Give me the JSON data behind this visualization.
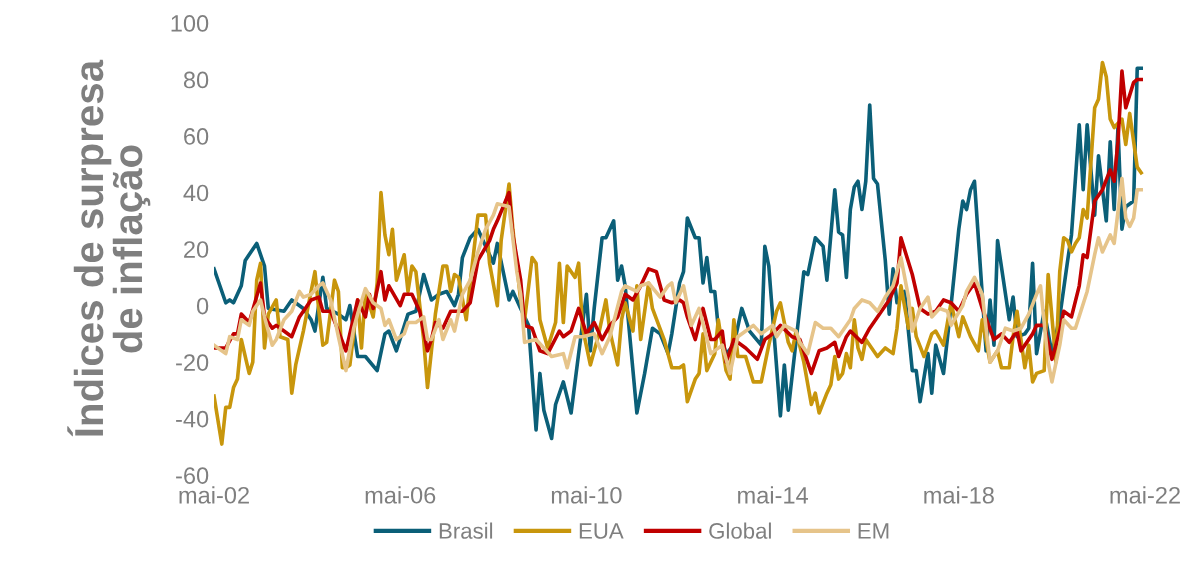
{
  "chart_data": {
    "type": "line",
    "ylabel": "Índices de surpresa\nde inflação",
    "ylim": [
      -60,
      100
    ],
    "yticks": [
      -60,
      -40,
      -20,
      0,
      20,
      40,
      60,
      80,
      100
    ],
    "xlim": [
      "2002-05",
      "2022-05"
    ],
    "xticks": [
      {
        "value": "2002-05",
        "label": "mai-02"
      },
      {
        "value": "2006-05",
        "label": "mai-06"
      },
      {
        "value": "2010-05",
        "label": "mai-10"
      },
      {
        "value": "2014-05",
        "label": "mai-14"
      },
      {
        "value": "2018-05",
        "label": "mai-18"
      },
      {
        "value": "2022-05",
        "label": "mai-22"
      }
    ],
    "grid": false,
    "legend": "bottom",
    "marker": "none",
    "line_style": "solid",
    "series": [
      {
        "name": "Brasil",
        "color": "#0b5f78",
        "x": [
          "2002-05",
          "2002-08",
          "2002-09",
          "2002-10",
          "2002-12",
          "2003-01",
          "2003-04",
          "2003-06",
          "2003-07",
          "2003-11",
          "2004-01",
          "2004-04",
          "2004-06",
          "2004-07",
          "2004-09",
          "2004-10",
          "2005-01",
          "2005-03",
          "2005-04",
          "2005-06",
          "2005-08",
          "2005-11",
          "2006-01",
          "2006-02",
          "2006-04",
          "2006-07",
          "2006-09",
          "2006-11",
          "2007-01",
          "2007-03",
          "2007-05",
          "2007-07",
          "2007-08",
          "2007-09",
          "2007-11",
          "2008-01",
          "2008-03",
          "2008-05",
          "2008-06",
          "2008-09",
          "2008-10",
          "2008-12",
          "2009-02",
          "2009-04",
          "2009-05",
          "2009-06",
          "2009-08",
          "2009-09",
          "2009-11",
          "2010-01",
          "2010-03",
          "2010-05",
          "2010-06",
          "2010-07",
          "2010-09",
          "2010-10",
          "2010-12",
          "2011-01",
          "2011-02",
          "2011-03",
          "2011-06",
          "2011-08",
          "2011-10",
          "2011-12",
          "2012-02",
          "2012-03",
          "2012-05",
          "2012-06",
          "2012-07",
          "2012-09",
          "2012-10",
          "2012-11",
          "2012-12",
          "2013-01",
          "2013-02",
          "2013-03",
          "2013-05",
          "2013-07",
          "2013-09",
          "2013-11",
          "2014-02",
          "2014-03",
          "2014-04",
          "2014-07",
          "2014-08",
          "2014-09",
          "2015-01",
          "2015-02",
          "2015-04",
          "2015-06",
          "2015-07",
          "2015-09",
          "2015-10",
          "2015-11",
          "2015-12",
          "2016-01",
          "2016-02",
          "2016-03",
          "2016-04",
          "2016-05",
          "2016-06",
          "2016-07",
          "2016-08",
          "2016-10",
          "2016-11",
          "2016-12",
          "2017-01",
          "2017-03",
          "2017-05",
          "2017-06",
          "2017-07",
          "2017-09",
          "2017-10",
          "2017-11",
          "2018-01",
          "2018-03",
          "2018-05",
          "2018-06",
          "2018-07",
          "2018-08",
          "2018-09",
          "2018-12",
          "2019-01",
          "2019-02",
          "2019-03",
          "2019-06",
          "2019-07",
          "2019-08",
          "2019-10",
          "2019-11",
          "2019-12",
          "2020-01",
          "2020-03",
          "2020-05",
          "2020-07",
          "2020-09",
          "2020-10",
          "2020-12",
          "2021-01",
          "2021-02",
          "2021-04",
          "2021-05",
          "2021-07",
          "2021-08",
          "2021-09",
          "2021-10",
          "2021-11",
          "2021-12",
          "2022-02",
          "2022-03",
          "2022-04"
        ],
        "values": [
          13,
          1,
          2,
          1,
          7,
          16,
          22,
          14,
          -1,
          -2,
          2,
          -1,
          -5,
          -9,
          10,
          -1,
          -3,
          -5,
          0,
          -18,
          -18,
          -23,
          -10,
          -9,
          -16,
          -3,
          -2,
          11,
          2,
          4,
          5,
          0,
          4,
          17,
          24,
          27,
          21,
          15,
          22,
          2,
          5,
          -1,
          -7,
          -44,
          -24,
          -37,
          -47,
          -35,
          -27,
          -38,
          -17,
          4,
          -16,
          -1,
          24,
          24,
          30,
          9,
          14,
          7,
          -38,
          -24,
          -8,
          -10,
          -17,
          -10,
          8,
          12,
          31,
          24,
          24,
          8,
          17,
          5,
          5,
          -8,
          -17,
          -14,
          -1,
          -9,
          -14,
          21,
          14,
          -39,
          -21,
          -37,
          12,
          11,
          24,
          21,
          9,
          41,
          26,
          25,
          10,
          34,
          42,
          44,
          34,
          44,
          71,
          45,
          43,
          16,
          -3,
          13,
          1,
          5,
          -23,
          -23,
          -34,
          -17,
          -31,
          -14,
          -24,
          0,
          27,
          37,
          34,
          41,
          44,
          -16,
          2,
          -14,
          23,
          -5,
          3,
          -11,
          -10,
          -8,
          15,
          -17,
          -2,
          -17,
          -4,
          16,
          25,
          64,
          41,
          64,
          32,
          53,
          30,
          58,
          34,
          63,
          27,
          35,
          37,
          84,
          84
        ]
      },
      {
        "name": "EUA",
        "color": "#c8960c",
        "x": [
          "2002-05",
          "2002-07",
          "2002-08",
          "2002-09",
          "2002-10",
          "2002-11",
          "2002-12",
          "2003-02",
          "2003-03",
          "2003-04",
          "2003-05",
          "2003-06",
          "2003-07",
          "2003-09",
          "2003-10",
          "2003-12",
          "2004-01",
          "2004-02",
          "2004-04",
          "2004-05",
          "2004-07",
          "2004-08",
          "2004-09",
          "2004-10",
          "2004-12",
          "2005-01",
          "2005-02",
          "2005-03",
          "2005-04",
          "2005-06",
          "2005-07",
          "2005-08",
          "2005-10",
          "2005-11",
          "2005-12",
          "2006-01",
          "2006-02",
          "2006-03",
          "2006-04",
          "2006-06",
          "2006-07",
          "2006-08",
          "2006-09",
          "2006-11",
          "2006-12",
          "2007-01",
          "2007-02",
          "2007-04",
          "2007-05",
          "2007-06",
          "2007-07",
          "2007-08",
          "2007-10",
          "2007-11",
          "2008-01",
          "2008-03",
          "2008-04",
          "2008-06",
          "2008-07",
          "2008-09",
          "2008-10",
          "2008-12",
          "2009-01",
          "2009-03",
          "2009-04",
          "2009-05",
          "2009-07",
          "2009-09",
          "2009-10",
          "2009-11",
          "2009-12",
          "2010-02",
          "2010-03",
          "2010-04",
          "2010-06",
          "2010-08",
          "2010-10",
          "2010-11",
          "2011-01",
          "2011-02",
          "2011-03",
          "2011-05",
          "2011-06",
          "2011-07",
          "2011-09",
          "2011-10",
          "2012-01",
          "2012-03",
          "2012-05",
          "2012-06",
          "2012-07",
          "2012-09",
          "2012-10",
          "2012-11",
          "2012-12",
          "2013-02",
          "2013-03",
          "2013-05",
          "2013-06",
          "2013-07",
          "2013-08",
          "2013-10",
          "2013-12",
          "2014-02",
          "2014-04",
          "2014-06",
          "2014-07",
          "2014-09",
          "2014-10",
          "2014-11",
          "2015-01",
          "2015-03",
          "2015-04",
          "2015-05",
          "2015-07",
          "2015-08",
          "2015-09",
          "2015-10",
          "2015-11",
          "2015-12",
          "2016-01",
          "2016-02",
          "2016-03",
          "2016-04",
          "2016-05",
          "2016-08",
          "2016-10",
          "2016-12",
          "2017-01",
          "2017-02",
          "2017-04",
          "2017-05",
          "2017-06",
          "2017-08",
          "2017-10",
          "2017-11",
          "2018-01",
          "2018-02",
          "2018-03",
          "2018-05",
          "2018-06",
          "2018-08",
          "2018-10",
          "2018-11",
          "2019-01",
          "2019-03",
          "2019-04",
          "2019-06",
          "2019-07",
          "2019-08",
          "2019-10",
          "2019-11",
          "2019-12",
          "2020-01",
          "2020-03",
          "2020-04",
          "2020-06",
          "2020-07",
          "2020-08",
          "2020-09",
          "2020-10",
          "2020-11",
          "2020-12",
          "2021-01",
          "2021-02",
          "2021-04",
          "2021-05",
          "2021-06",
          "2021-07",
          "2021-08",
          "2021-09",
          "2021-11",
          "2021-12",
          "2022-01",
          "2022-03",
          "2022-04"
        ],
        "values": [
          -32,
          -49,
          -36,
          -36,
          -29,
          -26,
          -12,
          -24,
          -20,
          9,
          15,
          -15,
          -3,
          2,
          -11,
          -12,
          -31,
          -21,
          -9,
          -2,
          12,
          -2,
          -14,
          -13,
          9,
          5,
          -22,
          -22,
          -21,
          2,
          -15,
          5,
          -4,
          8,
          40,
          25,
          18,
          27,
          9,
          18,
          5,
          14,
          12,
          -12,
          -29,
          -16,
          -3,
          14,
          14,
          5,
          11,
          10,
          -5,
          8,
          32,
          32,
          15,
          0,
          23,
          43,
          27,
          2,
          -5,
          17,
          15,
          -5,
          -15,
          -6,
          15,
          -6,
          14,
          10,
          15,
          -8,
          -21,
          -11,
          2,
          -9,
          -21,
          -5,
          1,
          -9,
          7,
          -12,
          8,
          -1,
          -12,
          -22,
          -22,
          -21,
          -34,
          -26,
          -24,
          -10,
          -23,
          -17,
          -5,
          -23,
          -26,
          -5,
          -18,
          -18,
          -27,
          -27,
          -14,
          -2,
          1,
          -13,
          -16,
          -9,
          -20,
          -35,
          -31,
          -38,
          -31,
          -28,
          -18,
          -26,
          -24,
          -17,
          -22,
          -5,
          -15,
          -19,
          -12,
          -18,
          -15,
          -17,
          -8,
          7,
          -8,
          -1,
          -11,
          -18,
          -10,
          -9,
          -14,
          -6,
          1,
          -11,
          -4,
          -11,
          -16,
          -5,
          -20,
          -16,
          -22,
          -22,
          -11,
          -2,
          -22,
          -14,
          -27,
          -24,
          -23,
          11,
          -20,
          12,
          24,
          23,
          19,
          22,
          24,
          34,
          31,
          70,
          73,
          86,
          81,
          66,
          63,
          66,
          57,
          68,
          49,
          47
        ]
      },
      {
        "name": "Global",
        "color": "#c00000",
        "x": [
          "2002-05",
          "2002-08",
          "2002-10",
          "2002-11",
          "2002-12",
          "2003-02",
          "2003-05",
          "2003-06",
          "2003-08",
          "2003-09",
          "2003-11",
          "2004-01",
          "2004-03",
          "2004-06",
          "2004-08",
          "2004-09",
          "2004-11",
          "2005-01",
          "2005-03",
          "2005-06",
          "2005-08",
          "2005-09",
          "2005-10",
          "2005-12",
          "2006-01",
          "2006-02",
          "2006-05",
          "2006-06",
          "2006-08",
          "2006-10",
          "2006-12",
          "2007-01",
          "2007-02",
          "2007-04",
          "2007-06",
          "2007-08",
          "2007-09",
          "2007-11",
          "2008-01",
          "2008-04",
          "2008-05",
          "2008-06",
          "2008-09",
          "2008-10",
          "2008-12",
          "2009-01",
          "2009-03",
          "2009-05",
          "2009-07",
          "2009-10",
          "2009-11",
          "2010-01",
          "2010-03",
          "2010-05",
          "2010-07",
          "2010-09",
          "2010-11",
          "2011-01",
          "2011-03",
          "2011-05",
          "2011-07",
          "2011-09",
          "2011-11",
          "2012-01",
          "2012-03",
          "2012-05",
          "2012-06",
          "2012-07",
          "2012-09",
          "2012-11",
          "2013-01",
          "2013-02",
          "2013-04",
          "2013-05",
          "2013-07",
          "2013-10",
          "2014-01",
          "2014-03",
          "2014-05",
          "2014-07",
          "2014-10",
          "2014-12",
          "2015-03",
          "2015-05",
          "2015-07",
          "2015-09",
          "2015-10",
          "2015-12",
          "2016-01",
          "2016-04",
          "2016-06",
          "2016-08",
          "2016-11",
          "2017-01",
          "2017-02",
          "2017-05",
          "2017-07",
          "2017-09",
          "2017-11",
          "2018-01",
          "2018-03",
          "2018-05",
          "2018-07",
          "2018-09",
          "2018-11",
          "2019-02",
          "2019-04",
          "2019-06",
          "2019-08",
          "2019-09",
          "2019-12",
          "2020-01",
          "2020-03",
          "2020-05",
          "2020-07",
          "2020-08",
          "2020-10",
          "2020-12",
          "2021-01",
          "2021-02",
          "2021-04",
          "2021-06",
          "2021-08",
          "2021-09",
          "2021-10",
          "2021-11",
          "2021-12",
          "2022-02",
          "2022-03",
          "2022-04"
        ],
        "values": [
          -15,
          -15,
          -10,
          -10,
          -3,
          -6,
          8,
          -4,
          -8,
          -7,
          -9,
          -11,
          -4,
          2,
          3,
          -2,
          -2,
          -9,
          -16,
          2,
          -4,
          4,
          -1,
          12,
          2,
          7,
          0,
          4,
          4,
          -2,
          -16,
          -12,
          -6,
          -8,
          -2,
          -2,
          -2,
          1,
          16,
          23,
          27,
          30,
          40,
          25,
          9,
          -7,
          -8,
          -16,
          -17,
          -9,
          -11,
          -9,
          -1,
          -10,
          -6,
          -12,
          -7,
          -4,
          4,
          2,
          7,
          13,
          12,
          2,
          1,
          2,
          1,
          -4,
          -12,
          -1,
          -12,
          -12,
          -9,
          -20,
          -12,
          -15,
          -19,
          -12,
          -10,
          -7,
          -11,
          -12,
          -24,
          -16,
          -15,
          -13,
          -18,
          -11,
          -9,
          -13,
          -8,
          -4,
          2,
          8,
          24,
          11,
          -1,
          -3,
          -2,
          2,
          1,
          -2,
          4,
          8,
          -1,
          -12,
          -10,
          -13,
          -9,
          -16,
          -10,
          -7,
          -7,
          -19,
          -9,
          -2,
          -4,
          7,
          18,
          17,
          37,
          41,
          48,
          44,
          58,
          83,
          70,
          79,
          80,
          80
        ]
      },
      {
        "name": "EM",
        "color": "#e6c48a",
        "x": [
          "2002-05",
          "2002-08",
          "2002-09",
          "2002-11",
          "2002-12",
          "2003-02",
          "2003-03",
          "2003-05",
          "2003-06",
          "2003-08",
          "2003-09",
          "2003-11",
          "2004-01",
          "2004-03",
          "2004-04",
          "2004-06",
          "2004-08",
          "2004-09",
          "2004-11",
          "2005-01",
          "2005-03",
          "2005-05",
          "2005-06",
          "2005-08",
          "2005-10",
          "2005-12",
          "2006-01",
          "2006-02",
          "2006-04",
          "2006-06",
          "2006-07",
          "2006-09",
          "2006-11",
          "2006-12",
          "2007-01",
          "2007-03",
          "2007-04",
          "2007-06",
          "2007-07",
          "2007-09",
          "2007-11",
          "2008-01",
          "2008-03",
          "2008-05",
          "2008-06",
          "2008-09",
          "2008-11",
          "2008-12",
          "2009-01",
          "2009-04",
          "2009-06",
          "2009-08",
          "2009-11",
          "2009-12",
          "2010-02",
          "2010-04",
          "2010-07",
          "2010-09",
          "2010-11",
          "2011-02",
          "2011-03",
          "2011-06",
          "2011-07",
          "2011-09",
          "2011-12",
          "2012-02",
          "2012-03",
          "2012-04",
          "2012-06",
          "2012-08",
          "2012-10",
          "2013-01",
          "2013-04",
          "2013-06",
          "2013-08",
          "2013-11",
          "2013-12",
          "2014-02",
          "2014-05",
          "2014-06",
          "2014-08",
          "2014-11",
          "2014-12",
          "2015-02",
          "2015-04",
          "2015-06",
          "2015-08",
          "2015-10",
          "2016-01",
          "2016-02",
          "2016-04",
          "2016-06",
          "2016-08",
          "2016-10",
          "2016-12",
          "2017-02",
          "2017-04",
          "2017-05",
          "2017-07",
          "2017-09",
          "2017-10",
          "2017-12",
          "2018-02",
          "2018-03",
          "2018-06",
          "2018-07",
          "2018-09",
          "2018-11",
          "2019-01",
          "2019-03",
          "2019-05",
          "2019-07",
          "2019-09",
          "2019-11",
          "2020-01",
          "2020-02",
          "2020-04",
          "2020-05",
          "2020-07",
          "2020-08",
          "2020-10",
          "2020-11",
          "2021-02",
          "2021-04",
          "2021-05",
          "2021-06",
          "2021-08",
          "2021-09",
          "2021-11",
          "2021-12",
          "2022-01",
          "2022-02",
          "2022-03",
          "2022-04"
        ],
        "values": [
          -14,
          -17,
          -11,
          -12,
          -5,
          -7,
          -2,
          2,
          -4,
          -14,
          -12,
          -5,
          -2,
          5,
          3,
          4,
          7,
          8,
          2,
          -11,
          -23,
          -8,
          -3,
          6,
          1,
          -1,
          -7,
          -5,
          -12,
          -10,
          -6,
          -6,
          -4,
          -12,
          -12,
          -5,
          -12,
          -5,
          -9,
          4,
          9,
          19,
          27,
          32,
          36,
          35,
          12,
          4,
          -13,
          -12,
          -15,
          -18,
          -17,
          -22,
          -11,
          -11,
          -10,
          -17,
          -11,
          5,
          7,
          5,
          7,
          8,
          3,
          7,
          8,
          1,
          7,
          -7,
          -1,
          -17,
          -14,
          -24,
          -11,
          -8,
          -7,
          -10,
          -7,
          -11,
          -7,
          -9,
          -13,
          -17,
          -6,
          -8,
          -8,
          -11,
          -5,
          -1,
          2,
          1,
          -2,
          3,
          7,
          17,
          3,
          -9,
          -1,
          3,
          -4,
          -1,
          -2,
          -7,
          0,
          5,
          10,
          4,
          -20,
          -16,
          -8,
          -9,
          -8,
          -3,
          4,
          7,
          -20,
          -27,
          -14,
          -5,
          -8,
          -8,
          5,
          18,
          24,
          19,
          25,
          22,
          45,
          31,
          28,
          31,
          41,
          41
        ]
      }
    ]
  }
}
